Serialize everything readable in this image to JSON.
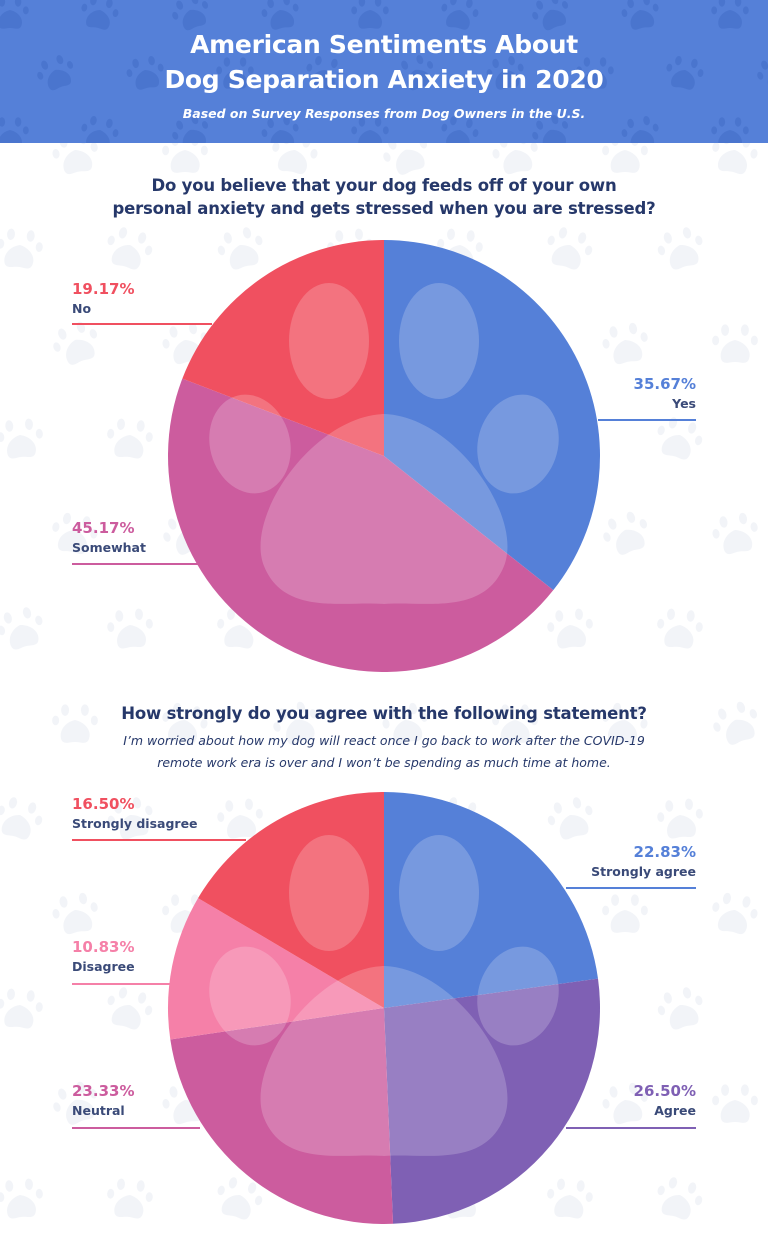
{
  "header": {
    "title_line1": "American Sentiments About",
    "title_line2": "Dog Separation Anxiety in 2020",
    "subtitle": "Based on Survey Responses from Dog Owners in the U.S."
  },
  "colors": {
    "header_bg": "#5580d8",
    "text_dark": "#26386a"
  },
  "chart_data": [
    {
      "type": "pie",
      "title_line1": "Do you believe that your dog feeds off of your own",
      "title_line2": "personal anxiety and gets stressed when you are stressed?",
      "slices": [
        {
          "label": "Yes",
          "value": 35.67,
          "display": "35.67%",
          "color": "#5580d8"
        },
        {
          "label": "Somewhat",
          "value": 45.17,
          "display": "45.17%",
          "color": "#cc5c9e"
        },
        {
          "label": "No",
          "value": 19.17,
          "display": "19.17%",
          "color": "#f05060"
        }
      ]
    },
    {
      "type": "pie",
      "title": "How strongly do you agree with the following statement?",
      "statement_line1": "I’m worried about how my dog will react once I go back to work after the COVID-19",
      "statement_line2": "remote work era is over and I won’t be spending as much time at home.",
      "slices": [
        {
          "label": "Strongly agree",
          "value": 22.83,
          "display": "22.83%",
          "color": "#5580d8"
        },
        {
          "label": "Agree",
          "value": 26.5,
          "display": "26.50%",
          "color": "#7f60b4"
        },
        {
          "label": "Neutral",
          "value": 23.33,
          "display": "23.33%",
          "color": "#cc5c9e"
        },
        {
          "label": "Disagree",
          "value": 10.83,
          "display": "10.83%",
          "color": "#f580a8"
        },
        {
          "label": "Strongly disagree",
          "value": 16.5,
          "display": "16.50%",
          "color": "#f05060"
        }
      ]
    }
  ]
}
